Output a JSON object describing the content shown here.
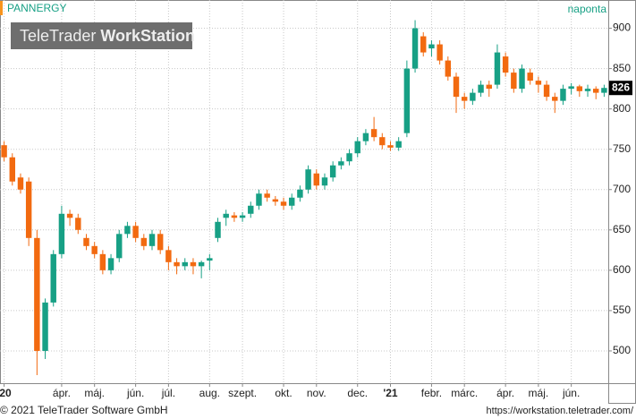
{
  "chart_data": {
    "type": "candlestick",
    "title": "PANNERGY",
    "period": "naponta",
    "watermark": {
      "light": "TeleTrader",
      "bold": "WorkStation"
    },
    "footer": {
      "left": "© 2021 TeleTrader Software GmbH",
      "right": "https://workstation.teletrader.com/"
    },
    "categories": [
      "'20",
      null,
      null,
      null,
      null,
      null,
      null,
      "ápr.",
      null,
      null,
      null,
      "máj.",
      null,
      null,
      null,
      null,
      "jún.",
      null,
      null,
      null,
      "júl.",
      null,
      null,
      null,
      null,
      "aug.",
      null,
      null,
      null,
      "szept.",
      null,
      null,
      null,
      null,
      "okt.",
      null,
      null,
      null,
      "nov.",
      null,
      null,
      null,
      null,
      "dec.",
      null,
      null,
      null,
      "'21",
      null,
      null,
      null,
      null,
      "febr.",
      null,
      null,
      null,
      "márc.",
      null,
      null,
      null,
      null,
      "ápr.",
      null,
      null,
      null,
      "máj.",
      null,
      null,
      null,
      "jún.",
      null,
      null,
      null,
      null
    ],
    "open": [
      755,
      740,
      715,
      710,
      640,
      500,
      560,
      620,
      670,
      665,
      640,
      630,
      620,
      600,
      615,
      645,
      655,
      640,
      630,
      645,
      625,
      610,
      605,
      610,
      605,
      612,
      640,
      665,
      668,
      665,
      670,
      680,
      695,
      688,
      685,
      680,
      690,
      700,
      720,
      705,
      715,
      730,
      735,
      745,
      760,
      775,
      765,
      755,
      752,
      770,
      850,
      890,
      875,
      880,
      860,
      840,
      815,
      810,
      820,
      830,
      830,
      865,
      845,
      825,
      845,
      835,
      830,
      815,
      810,
      825,
      828,
      822,
      825,
      820
    ],
    "high": [
      760,
      745,
      720,
      715,
      650,
      565,
      625,
      680,
      675,
      670,
      645,
      635,
      625,
      620,
      650,
      660,
      660,
      645,
      650,
      650,
      630,
      615,
      615,
      615,
      612,
      620,
      665,
      675,
      672,
      672,
      685,
      700,
      700,
      692,
      690,
      695,
      705,
      730,
      725,
      720,
      735,
      740,
      750,
      765,
      775,
      790,
      770,
      760,
      765,
      860,
      910,
      895,
      885,
      885,
      865,
      845,
      820,
      825,
      835,
      835,
      880,
      870,
      850,
      855,
      850,
      840,
      835,
      820,
      830,
      832,
      830,
      830,
      828,
      830
    ],
    "low": [
      735,
      705,
      695,
      630,
      470,
      490,
      555,
      615,
      655,
      645,
      625,
      615,
      595,
      595,
      610,
      640,
      635,
      625,
      625,
      620,
      600,
      595,
      600,
      595,
      590,
      600,
      635,
      655,
      660,
      660,
      665,
      675,
      685,
      680,
      675,
      675,
      685,
      695,
      700,
      700,
      710,
      725,
      730,
      740,
      755,
      760,
      750,
      748,
      748,
      765,
      845,
      865,
      865,
      855,
      835,
      795,
      800,
      805,
      815,
      815,
      825,
      840,
      820,
      820,
      830,
      820,
      810,
      795,
      805,
      818,
      815,
      815,
      812,
      815
    ],
    "close": [
      740,
      710,
      700,
      640,
      500,
      560,
      620,
      670,
      665,
      650,
      630,
      620,
      600,
      615,
      645,
      655,
      640,
      630,
      645,
      625,
      610,
      605,
      610,
      605,
      610,
      615,
      660,
      670,
      665,
      668,
      680,
      695,
      690,
      685,
      680,
      690,
      700,
      725,
      705,
      715,
      730,
      735,
      745,
      760,
      770,
      765,
      755,
      752,
      760,
      850,
      900,
      870,
      880,
      860,
      840,
      815,
      810,
      820,
      830,
      825,
      870,
      845,
      825,
      850,
      835,
      830,
      815,
      810,
      825,
      828,
      822,
      825,
      820,
      826
    ],
    "up_color": "#17a085",
    "down_color": "#f26a10",
    "ylim": [
      460,
      935
    ],
    "yticks": [
      500,
      550,
      600,
      650,
      700,
      750,
      800,
      850,
      900
    ],
    "grid": true
  }
}
